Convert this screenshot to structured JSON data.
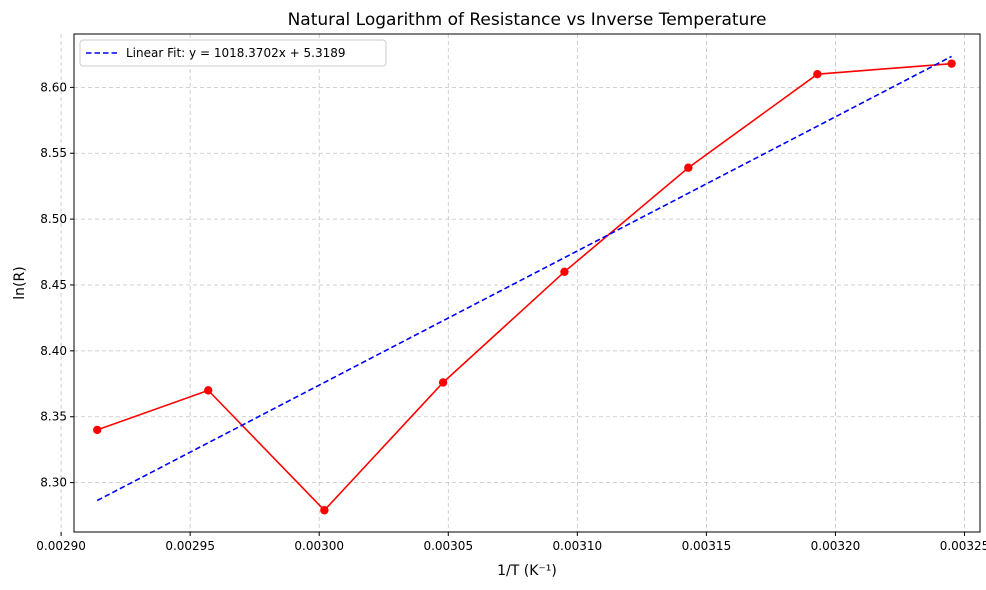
{
  "chart_data": {
    "type": "line",
    "title": "Natural Logarithm of Resistance vs Inverse Temperature",
    "xlabel": "1/T (K⁻¹)",
    "ylabel": "ln(R)",
    "xlim": [
      0.002905,
      0.003256
    ],
    "ylim": [
      8.2625,
      8.6405
    ],
    "x_ticks": [
      0.0029,
      0.00295,
      0.003,
      0.00305,
      0.0031,
      0.00315,
      0.0032,
      0.00325
    ],
    "x_tick_labels": [
      "0.00290",
      "0.00295",
      "0.00300",
      "0.00305",
      "0.00310",
      "0.00315",
      "0.00320",
      "0.00325"
    ],
    "y_ticks": [
      8.3,
      8.35,
      8.4,
      8.45,
      8.5,
      8.55,
      8.6
    ],
    "y_tick_labels": [
      "8.30",
      "8.35",
      "8.40",
      "8.45",
      "8.50",
      "8.55",
      "8.60"
    ],
    "grid": true,
    "legend_position": "top-left",
    "series": [
      {
        "name": "",
        "style": "solid",
        "marker": "circle",
        "color": "#ff0000",
        "x": [
          0.002914,
          0.002957,
          0.003002,
          0.003048,
          0.003095,
          0.003143,
          0.003193,
          0.003245
        ],
        "y": [
          8.34,
          8.37,
          8.279,
          8.376,
          8.46,
          8.539,
          8.61,
          8.618
        ]
      },
      {
        "name": "Linear Fit: y = 1018.3702x + 5.3189",
        "style": "dashed",
        "marker": "none",
        "color": "#0000ff",
        "x": [
          0.002914,
          0.003245
        ],
        "y": [
          8.2864,
          8.6235
        ]
      }
    ]
  }
}
